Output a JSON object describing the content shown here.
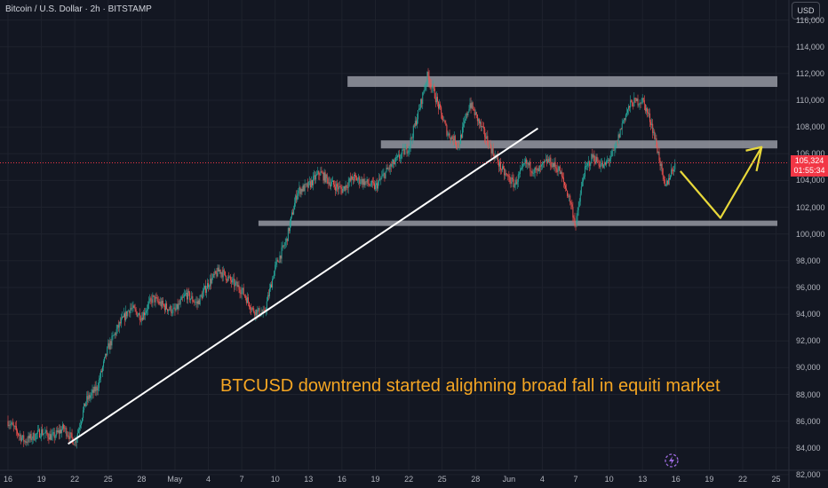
{
  "header": {
    "title": "Bitcoin / U.S. Dollar · 2h · BITSTAMP",
    "currency_button": "USD"
  },
  "price_tag": {
    "price": "105,324",
    "countdown": "01:55:34"
  },
  "annotation_text": "BTCUSD downtrend started alighning broad fall in equiti market",
  "colors": {
    "background": "#131722",
    "up_candle": "#26a69a",
    "down_candle": "#ef5350",
    "zone": "#9598a1",
    "trendline": "#ffffff",
    "projection": "#e8d83a",
    "annotation": "#f5a623",
    "last_price": "#f23645"
  },
  "chart_data": {
    "type": "candlestick",
    "title": "Bitcoin / U.S. Dollar · 2h · BITSTAMP",
    "ylim": [
      81000,
      117500
    ],
    "y_ticks": [
      82000,
      84000,
      86000,
      88000,
      90000,
      92000,
      94000,
      96000,
      98000,
      100000,
      102000,
      104000,
      106000,
      108000,
      110000,
      112000,
      114000,
      116000
    ],
    "y_tick_labels": [
      "82,000",
      "84,000",
      "86,000",
      "88,000",
      "90,000",
      "92,000",
      "94,000",
      "96,000",
      "98,000",
      "100,000",
      "102,000",
      "104,000",
      "106,000",
      "108,000",
      "110,000",
      "112,000",
      "114,000",
      "116,000"
    ],
    "x_ticks": [
      "16",
      "19",
      "22",
      "25",
      "28",
      "May",
      "4",
      "7",
      "10",
      "13",
      "16",
      "19",
      "22",
      "25",
      "28",
      "Jun",
      "4",
      "7",
      "10",
      "13",
      "16",
      "19",
      "22",
      "25"
    ],
    "x_range_days": [
      0,
      70
    ],
    "last_price": 105324,
    "price_path": [
      [
        0,
        86000
      ],
      [
        1.5,
        84500
      ],
      [
        3,
        85200
      ],
      [
        4,
        84800
      ],
      [
        5,
        85500
      ],
      [
        6,
        84400
      ],
      [
        7,
        87500
      ],
      [
        8,
        88500
      ],
      [
        9,
        91500
      ],
      [
        10,
        93200
      ],
      [
        11,
        94500
      ],
      [
        12,
        93800
      ],
      [
        13,
        95200
      ],
      [
        14,
        94600
      ],
      [
        15,
        94200
      ],
      [
        16,
        95500
      ],
      [
        17,
        94800
      ],
      [
        18,
        96300
      ],
      [
        19,
        97300
      ],
      [
        20,
        96500
      ],
      [
        21,
        95800
      ],
      [
        22,
        94300
      ],
      [
        23,
        94000
      ],
      [
        24,
        97500
      ],
      [
        25,
        99500
      ],
      [
        26,
        103200
      ],
      [
        27,
        103600
      ],
      [
        28,
        104600
      ],
      [
        29,
        103800
      ],
      [
        30,
        103300
      ],
      [
        31,
        104200
      ],
      [
        32,
        103900
      ],
      [
        33,
        103500
      ],
      [
        34,
        104700
      ],
      [
        35,
        105600
      ],
      [
        36,
        106500
      ],
      [
        37,
        109500
      ],
      [
        37.7,
        111900
      ],
      [
        38.5,
        110000
      ],
      [
        39.5,
        107500
      ],
      [
        40.5,
        106700
      ],
      [
        41.5,
        109800
      ],
      [
        42.5,
        108000
      ],
      [
        43.5,
        106200
      ],
      [
        44.5,
        104600
      ],
      [
        45.5,
        103700
      ],
      [
        46.5,
        105300
      ],
      [
        47.5,
        104600
      ],
      [
        48.5,
        105500
      ],
      [
        49.5,
        104800
      ],
      [
        50.5,
        102500
      ],
      [
        51,
        100600
      ],
      [
        51.7,
        104500
      ],
      [
        52.5,
        105800
      ],
      [
        53.5,
        105000
      ],
      [
        54.5,
        106200
      ],
      [
        55.3,
        108600
      ],
      [
        56,
        109800
      ],
      [
        57,
        110000
      ],
      [
        57.8,
        108300
      ],
      [
        58.5,
        105700
      ],
      [
        59,
        103400
      ],
      [
        59.6,
        104700
      ],
      [
        60,
        105324
      ]
    ],
    "zones": [
      {
        "from_day": 30.5,
        "to_day": 70,
        "low": 111000,
        "high": 111800
      },
      {
        "from_day": 33.5,
        "to_day": 70,
        "low": 106400,
        "high": 107000
      },
      {
        "from_day": 22.5,
        "to_day": 70,
        "low": 100600,
        "high": 101000
      }
    ],
    "trendline": [
      [
        5.4,
        84300
      ],
      [
        47.6,
        107900
      ]
    ],
    "projection": [
      [
        60.4,
        104700
      ],
      [
        64,
        101200
      ],
      [
        67.7,
        106500
      ]
    ],
    "projection_end_arrow": [
      67,
      104700
    ]
  }
}
